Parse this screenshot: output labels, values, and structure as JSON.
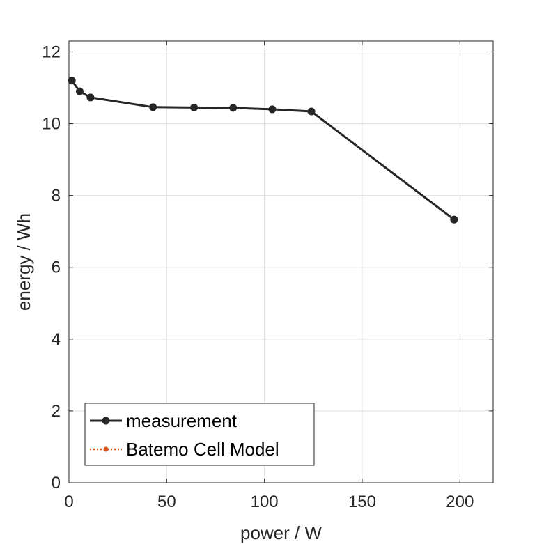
{
  "chart_data": {
    "type": "line",
    "xlabel": "power / W",
    "ylabel": "energy / Wh",
    "xlim": [
      0,
      217
    ],
    "ylim": [
      0,
      12.3
    ],
    "xticks": [
      0,
      50,
      100,
      150,
      200
    ],
    "yticks": [
      0,
      2,
      4,
      6,
      8,
      10,
      12
    ],
    "grid": true,
    "legend_position": "bottom-left",
    "series": [
      {
        "name": "measurement",
        "color": "#262626",
        "line_style": "solid",
        "marker": "circle",
        "x": [
          1.5,
          5.5,
          11,
          43,
          64,
          84,
          104,
          124,
          197
        ],
        "y": [
          11.2,
          10.9,
          10.73,
          10.46,
          10.45,
          10.44,
          10.4,
          10.34,
          7.33
        ]
      },
      {
        "name": "Batemo Cell Model",
        "color": "#D95319",
        "line_style": "dotted",
        "marker": "point",
        "x": [],
        "y": []
      }
    ]
  }
}
